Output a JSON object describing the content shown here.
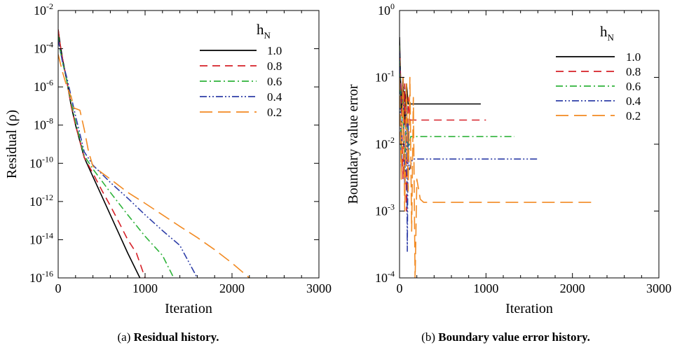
{
  "figure": {
    "captions": [
      {
        "label": "(a)",
        "text": "Residual history."
      },
      {
        "label": "(b)",
        "text": "Boundary value error history."
      }
    ]
  },
  "chart_data": [
    {
      "type": "line",
      "xlabel": "Iteration",
      "ylabel": "Residual (ρ)",
      "xlim": [
        0,
        3000
      ],
      "ylim": [
        1e-16,
        0.01
      ],
      "yscale": "log",
      "xticks": [
        "0",
        "1000",
        "2000",
        "3000"
      ],
      "yticks_exp": [
        "-2",
        "-4",
        "-6",
        "-8",
        "-10",
        "-12",
        "-14",
        "-16"
      ],
      "ytick_base": "10",
      "grid": false,
      "legend": {
        "title": "h",
        "title_sub": "N",
        "position": "top-right"
      },
      "series": [
        {
          "name": "1.0",
          "color": "#000000",
          "dash": "solid",
          "points": [
            [
              0,
              0.001
            ],
            [
              20,
              0.0002
            ],
            [
              50,
              3e-05
            ],
            [
              100,
              2e-06
            ],
            [
              150,
              1e-07
            ],
            [
              200,
              1e-08
            ],
            [
              300,
              2e-10
            ],
            [
              400,
              2e-11
            ],
            [
              500,
              2e-12
            ],
            [
              600,
              2e-13
            ],
            [
              700,
              2e-14
            ],
            [
              800,
              2e-15
            ],
            [
              940,
              1e-16
            ]
          ]
        },
        {
          "name": "0.8",
          "color": "#d62028",
          "dash": "dash",
          "points": [
            [
              0,
              0.001
            ],
            [
              20,
              0.0002
            ],
            [
              50,
              3e-05
            ],
            [
              100,
              2e-06
            ],
            [
              150,
              1e-07
            ],
            [
              200,
              1e-08
            ],
            [
              300,
              2e-10
            ],
            [
              400,
              3e-11
            ],
            [
              500,
              4e-12
            ],
            [
              600,
              6e-13
            ],
            [
              700,
              8e-14
            ],
            [
              800,
              1e-14
            ],
            [
              900,
              2e-15
            ],
            [
              1000,
              1e-16
            ]
          ]
        },
        {
          "name": "0.6",
          "color": "#2eb33a",
          "dash": "dashdot",
          "points": [
            [
              0,
              0.0005
            ],
            [
              20,
              0.0001
            ],
            [
              50,
              2e-05
            ],
            [
              100,
              2e-06
            ],
            [
              150,
              1.5e-07
            ],
            [
              200,
              1.5e-08
            ],
            [
              300,
              2.5e-10
            ],
            [
              400,
              5e-11
            ],
            [
              600,
              3e-12
            ],
            [
              800,
              2e-13
            ],
            [
              1000,
              1.5e-14
            ],
            [
              1200,
              1.5e-15
            ],
            [
              1330,
              1e-16
            ]
          ]
        },
        {
          "name": "0.4",
          "color": "#2e3ea8",
          "dash": "dashdotdot",
          "points": [
            [
              0,
              0.0003
            ],
            [
              20,
              0.0001
            ],
            [
              50,
              2e-05
            ],
            [
              100,
              3e-06
            ],
            [
              150,
              3e-07
            ],
            [
              200,
              3e-08
            ],
            [
              300,
              4e-10
            ],
            [
              400,
              8e-11
            ],
            [
              600,
              1e-11
            ],
            [
              800,
              1.5e-12
            ],
            [
              1000,
              2e-13
            ],
            [
              1200,
              3e-14
            ],
            [
              1400,
              5e-15
            ],
            [
              1600,
              1e-16
            ]
          ]
        },
        {
          "name": "0.2",
          "color": "#f28a22",
          "dash": "longdash",
          "points": [
            [
              0,
              5e-05
            ],
            [
              50,
              6e-06
            ],
            [
              100,
              1e-06
            ],
            [
              150,
              3e-07
            ],
            [
              180,
              8e-08
            ],
            [
              250,
              6e-08
            ],
            [
              300,
              6e-09
            ],
            [
              350,
              4e-10
            ],
            [
              400,
              7e-11
            ],
            [
              600,
              1.5e-11
            ],
            [
              800,
              3e-12
            ],
            [
              1000,
              8e-13
            ],
            [
              1200,
              2e-13
            ],
            [
              1400,
              5e-14
            ],
            [
              1600,
              1.3e-14
            ],
            [
              1800,
              3e-15
            ],
            [
              2000,
              6e-16
            ],
            [
              2200,
              1e-16
            ]
          ]
        }
      ]
    },
    {
      "type": "line",
      "xlabel": "Iteration",
      "ylabel": "Boundary value error",
      "xlim": [
        0,
        3000
      ],
      "ylim": [
        0.0001,
        1
      ],
      "yscale": "log",
      "xticks": [
        "0",
        "1000",
        "2000",
        "3000"
      ],
      "yticks_exp": [
        "0",
        "-1",
        "-2",
        "-3",
        "-4"
      ],
      "ytick_base": "10",
      "grid": false,
      "legend": {
        "title": "h",
        "title_sub": "N",
        "position": "top-right"
      },
      "series": [
        {
          "name": "1.0",
          "color": "#000000",
          "dash": "solid",
          "points": [
            [
              0,
              0.4
            ],
            [
              20,
              0.03
            ],
            [
              40,
              0.1
            ],
            [
              60,
              0.02
            ],
            [
              80,
              0.08
            ],
            [
              100,
              0.04
            ],
            [
              120,
              0.04
            ],
            [
              940,
              0.04
            ]
          ]
        },
        {
          "name": "0.8",
          "color": "#d62028",
          "dash": "dash",
          "points": [
            [
              0,
              0.3
            ],
            [
              20,
              0.05
            ],
            [
              40,
              0.003
            ],
            [
              60,
              0.08
            ],
            [
              80,
              0.001
            ],
            [
              100,
              0.05
            ],
            [
              120,
              0.023
            ],
            [
              1000,
              0.023
            ]
          ]
        },
        {
          "name": "0.6",
          "color": "#2eb33a",
          "dash": "dashdot",
          "points": [
            [
              0,
              0.3
            ],
            [
              20,
              0.006
            ],
            [
              40,
              0.06
            ],
            [
              60,
              0.003
            ],
            [
              80,
              0.05
            ],
            [
              100,
              0.007
            ],
            [
              130,
              0.013
            ],
            [
              1330,
              0.013
            ]
          ]
        },
        {
          "name": "0.4",
          "color": "#2e3ea8",
          "dash": "dashdotdot",
          "points": [
            [
              0,
              0.25
            ],
            [
              20,
              0.004
            ],
            [
              40,
              0.09
            ],
            [
              60,
              0.0025
            ],
            [
              80,
              0.06
            ],
            [
              90,
              0.00025
            ],
            [
              100,
              0.02
            ],
            [
              110,
              0.004
            ],
            [
              150,
              0.006
            ],
            [
              1600,
              0.006
            ]
          ]
        },
        {
          "name": "0.2",
          "color": "#f28a22",
          "dash": "longdash",
          "points": [
            [
              0,
              0.1
            ],
            [
              20,
              0.003
            ],
            [
              40,
              0.1
            ],
            [
              60,
              0.001
            ],
            [
              80,
              0.08
            ],
            [
              100,
              0.002
            ],
            [
              120,
              0.1
            ],
            [
              140,
              0.0005
            ],
            [
              160,
              0.05
            ],
            [
              180,
              9e-05
            ],
            [
              200,
              0.003
            ],
            [
              240,
              0.0015
            ],
            [
              280,
              0.00135
            ],
            [
              2260,
              0.00135
            ]
          ]
        }
      ]
    }
  ]
}
